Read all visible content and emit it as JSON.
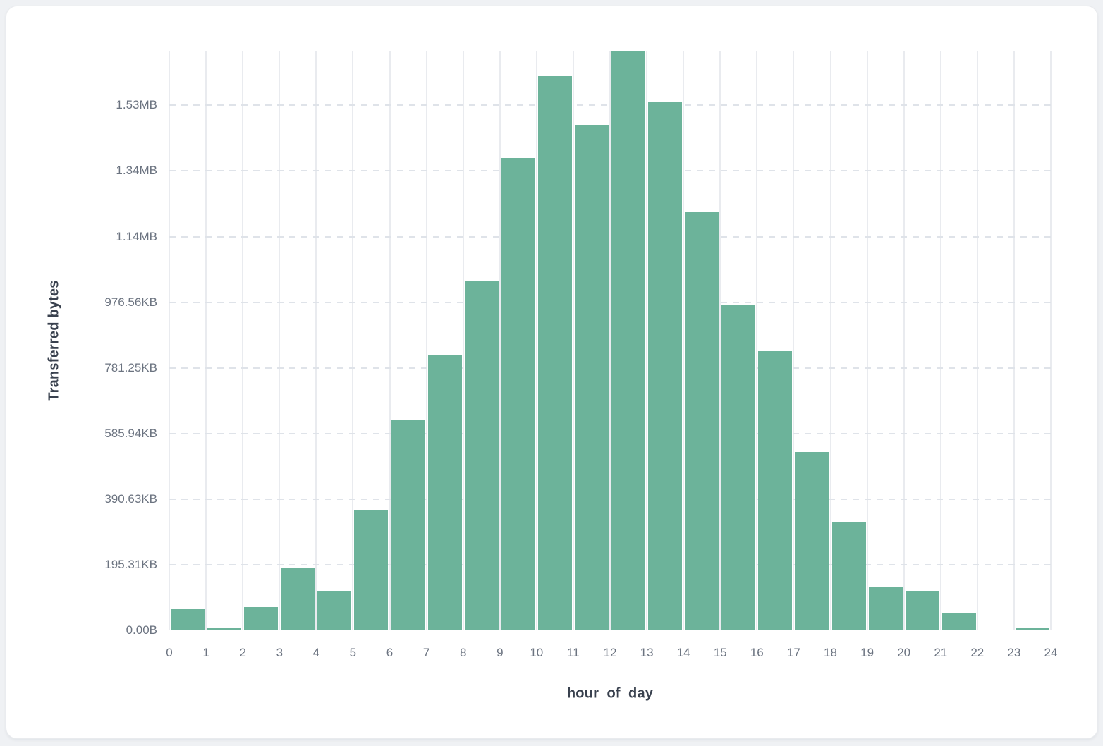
{
  "page": {
    "background_color": "#eff1f4",
    "card_background_color": "#ffffff",
    "card_border_color": "#e9ebee"
  },
  "chart_data": {
    "type": "bar",
    "subtype": "histogram",
    "title": "",
    "xlabel": "hour_of_day",
    "ylabel": "Transferred bytes",
    "bar_color": "#6cb39a",
    "grid": {
      "vertical_lines": "solid",
      "horizontal_lines": "dashed",
      "legend": "none"
    },
    "x_tick_labels": [
      "0",
      "1",
      "2",
      "3",
      "4",
      "5",
      "6",
      "7",
      "8",
      "9",
      "10",
      "11",
      "12",
      "13",
      "14",
      "15",
      "16",
      "17",
      "18",
      "19",
      "20",
      "21",
      "22",
      "23",
      "24"
    ],
    "y_axis": {
      "min_bytes": 0,
      "max_bytes": 1764000,
      "ticks": [
        {
          "label": "0.00B",
          "bytes": 0
        },
        {
          "label": "195.31KB",
          "bytes": 200000
        },
        {
          "label": "390.63KB",
          "bytes": 400000
        },
        {
          "label": "585.94KB",
          "bytes": 600000
        },
        {
          "label": "781.25KB",
          "bytes": 800000
        },
        {
          "label": "976.56KB",
          "bytes": 1000000
        },
        {
          "label": "1.14MB",
          "bytes": 1200000
        },
        {
          "label": "1.34MB",
          "bytes": 1400000
        },
        {
          "label": "1.53MB",
          "bytes": 1600000
        }
      ]
    },
    "categories": [
      0,
      1,
      2,
      3,
      4,
      5,
      6,
      7,
      8,
      9,
      10,
      11,
      12,
      13,
      14,
      15,
      16,
      17,
      18,
      19,
      20,
      21,
      22,
      23
    ],
    "series": [
      {
        "name": "Transferred bytes per hour_of_day",
        "values_bytes": [
          66000,
          9500,
          71000,
          191000,
          120000,
          365000,
          640000,
          837000,
          1064000,
          1440000,
          1688000,
          1541000,
          1764000,
          1612000,
          1277000,
          991000,
          852000,
          543000,
          330000,
          133000,
          120000,
          54000,
          3000,
          9000
        ]
      }
    ]
  }
}
